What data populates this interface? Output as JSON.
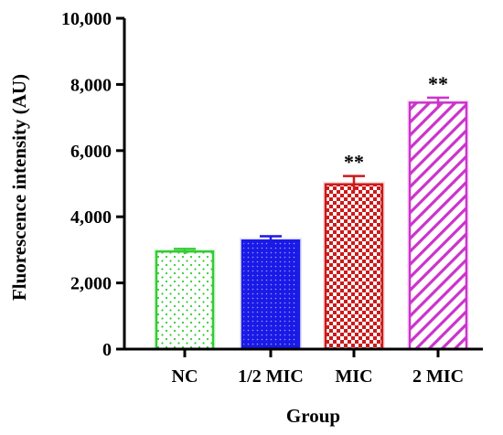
{
  "chart_data": {
    "type": "bar",
    "title": "",
    "xlabel": "Group",
    "ylabel": "Fluorescence intensity (AU)",
    "ylim": [
      0,
      10000
    ],
    "yticks": [
      0,
      2000,
      4000,
      6000,
      8000,
      10000
    ],
    "ytick_labels": [
      "0",
      "2,000",
      "4,000",
      "6,000",
      "8,000",
      "10,000"
    ],
    "categories": [
      "NC",
      "1/2 MIC",
      "MIC",
      "2 MIC"
    ],
    "values": [
      2950,
      3280,
      4980,
      7450
    ],
    "errors": [
      80,
      130,
      250,
      150
    ],
    "annotations": [
      "",
      "",
      "**",
      "**"
    ],
    "colors": [
      "#33cc33",
      "#1a1ae6",
      "#cc1a1a",
      "#cc33cc"
    ],
    "patterns": [
      "sparse-dots",
      "dense-dots",
      "checker",
      "diagonal-stripes"
    ],
    "grid": false,
    "legend": "none"
  }
}
